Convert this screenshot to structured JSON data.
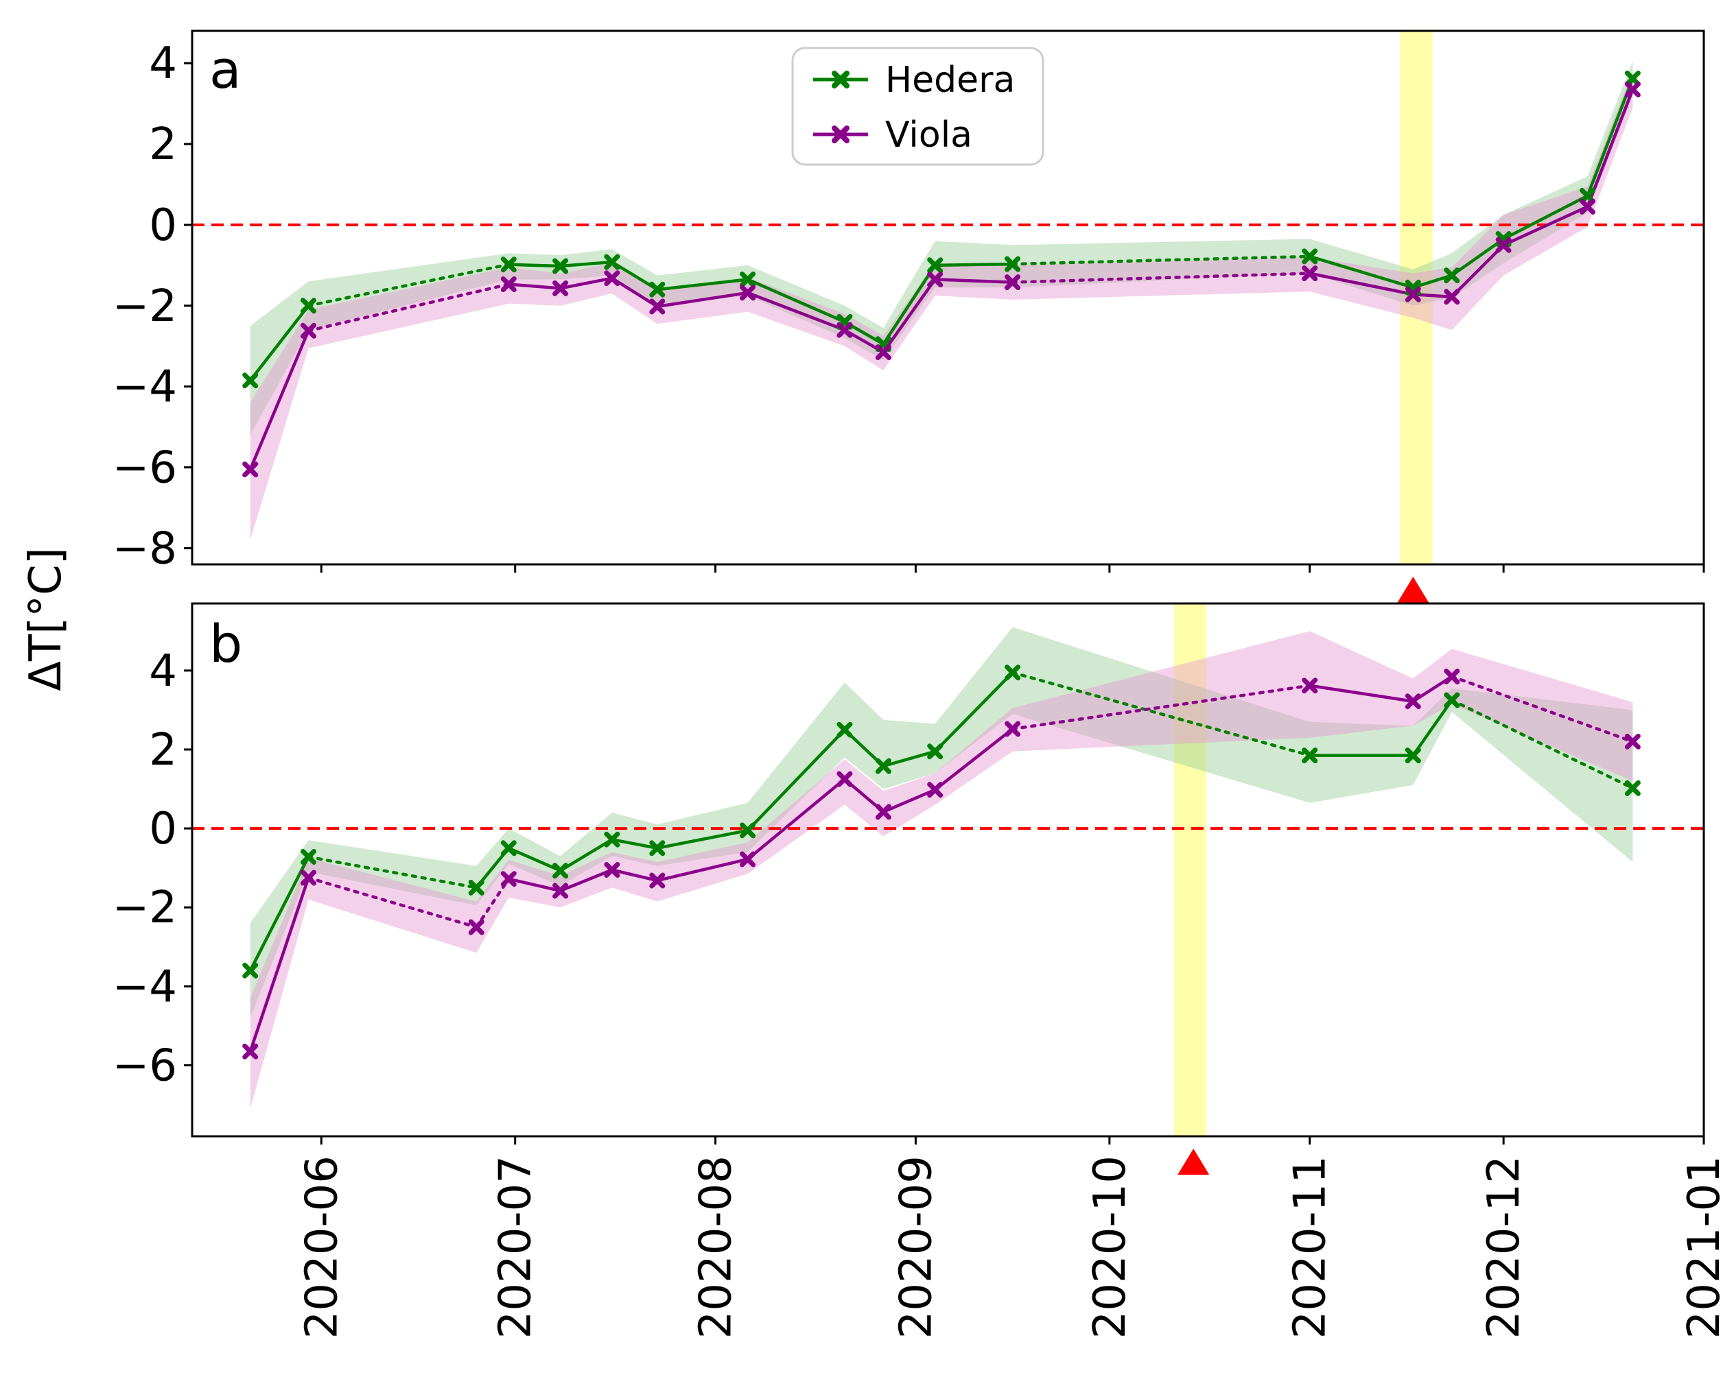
{
  "ylabel": "ΔT[°C]",
  "colors": {
    "hedera": "#008000",
    "viola": "#8b008b",
    "hedera_band": "#98cc98",
    "viola_band": "#e79ad0",
    "zero_line": "#ff0000",
    "highlight": "#ffffa0",
    "marker_triangle": "#ff0000"
  },
  "legend": {
    "placement": "top-center",
    "items": [
      "Hedera",
      "Viola"
    ]
  },
  "x_ticks": [
    "2020-06",
    "2020-07",
    "2020-08",
    "2020-09",
    "2020-10",
    "2020-11",
    "2020-12",
    "2021-01"
  ],
  "chart_data": [
    {
      "type": "line",
      "panel": "a",
      "xlabel": "",
      "ylabel": "ΔT[°C]",
      "xlim": [
        "2020-05-12",
        "2021-01-01"
      ],
      "ylim": [
        -8.4,
        4.8
      ],
      "yticks": [
        4,
        2,
        0,
        -2,
        -4,
        -6,
        -8
      ],
      "zero_line": 0,
      "highlight_span": [
        "2020-11-15",
        "2020-11-20"
      ],
      "event_marker": "2020-11-17",
      "series": [
        {
          "name": "Hedera",
          "dates": [
            "2020-05-21",
            "2020-05-30",
            "2020-06-30",
            "2020-07-08",
            "2020-07-16",
            "2020-07-23",
            "2020-08-06",
            "2020-08-21",
            "2020-08-27",
            "2020-09-04",
            "2020-09-16",
            "2020-11-01",
            "2020-11-17",
            "2020-11-23",
            "2020-12-01",
            "2020-12-14",
            "2020-12-21"
          ],
          "values": [
            -3.85,
            -2.0,
            -0.98,
            -1.02,
            -0.92,
            -1.6,
            -1.35,
            -2.4,
            -2.95,
            -1.0,
            -0.97,
            -0.78,
            -1.55,
            -1.25,
            -0.35,
            0.72,
            3.62
          ],
          "lower": [
            -5.2,
            -2.6,
            -1.35,
            -1.35,
            -1.25,
            -2.0,
            -1.75,
            -2.8,
            -3.35,
            -1.55,
            -1.55,
            -1.2,
            -2.0,
            -1.8,
            -0.95,
            0.3,
            3.2
          ],
          "upper": [
            -2.5,
            -1.4,
            -0.7,
            -0.75,
            -0.6,
            -1.25,
            -1.0,
            -2.0,
            -2.55,
            -0.4,
            -0.5,
            -0.35,
            -1.1,
            -0.7,
            0.25,
            1.2,
            4.05
          ],
          "segment_styles": [
            "solid",
            "dotted",
            "solid",
            "solid",
            "solid",
            "solid",
            "solid",
            "solid",
            "solid",
            "solid",
            "dotted",
            "solid",
            "solid",
            "solid",
            "solid",
            "solid"
          ]
        },
        {
          "name": "Viola",
          "dates": [
            "2020-05-21",
            "2020-05-30",
            "2020-06-30",
            "2020-07-08",
            "2020-07-16",
            "2020-07-23",
            "2020-08-06",
            "2020-08-21",
            "2020-08-27",
            "2020-09-04",
            "2020-09-16",
            "2020-11-01",
            "2020-11-17",
            "2020-11-23",
            "2020-12-01",
            "2020-12-14",
            "2020-12-21"
          ],
          "values": [
            -6.05,
            -2.62,
            -1.47,
            -1.57,
            -1.32,
            -2.02,
            -1.68,
            -2.6,
            -3.15,
            -1.35,
            -1.42,
            -1.2,
            -1.72,
            -1.78,
            -0.5,
            0.45,
            3.35
          ],
          "lower": [
            -7.8,
            -3.05,
            -1.95,
            -2.0,
            -1.7,
            -2.45,
            -2.15,
            -3.0,
            -3.6,
            -1.75,
            -1.85,
            -1.65,
            -2.3,
            -2.6,
            -1.25,
            -0.05,
            2.9
          ],
          "upper": [
            -4.4,
            -2.1,
            -1.05,
            -1.2,
            -0.95,
            -1.6,
            -1.3,
            -2.2,
            -2.75,
            -0.95,
            -1.0,
            -0.8,
            -1.2,
            -1.05,
            0.25,
            0.95,
            3.8
          ],
          "segment_styles": [
            "solid",
            "dotted",
            "solid",
            "solid",
            "solid",
            "solid",
            "solid",
            "solid",
            "solid",
            "solid",
            "dotted",
            "solid",
            "solid",
            "solid",
            "solid",
            "solid"
          ]
        }
      ]
    },
    {
      "type": "line",
      "panel": "b",
      "xlabel": "",
      "ylabel": "ΔT[°C]",
      "xlim": [
        "2020-05-12",
        "2021-01-01"
      ],
      "ylim": [
        -7.8,
        5.7
      ],
      "yticks": [
        4,
        2,
        0,
        -2,
        -4,
        -6
      ],
      "zero_line": 0,
      "highlight_span": [
        "2020-10-11",
        "2020-10-16"
      ],
      "event_marker": "2020-10-14",
      "series": [
        {
          "name": "Hedera",
          "dates": [
            "2020-05-21",
            "2020-05-30",
            "2020-06-25",
            "2020-06-30",
            "2020-07-08",
            "2020-07-16",
            "2020-07-23",
            "2020-08-06",
            "2020-08-21",
            "2020-08-27",
            "2020-09-04",
            "2020-09-16",
            "2020-11-01",
            "2020-11-17",
            "2020-11-23",
            "2020-12-21"
          ],
          "values": [
            -3.6,
            -0.72,
            -1.5,
            -0.5,
            -1.07,
            -0.28,
            -0.5,
            -0.05,
            2.5,
            1.58,
            1.95,
            3.95,
            1.85,
            1.85,
            3.25,
            1.02
          ],
          "lower": [
            -4.8,
            -1.1,
            -1.95,
            -0.9,
            -1.45,
            -0.7,
            -0.95,
            -0.6,
            1.8,
            1.0,
            1.4,
            2.9,
            0.65,
            1.1,
            2.95,
            -0.85
          ],
          "upper": [
            -2.4,
            -0.3,
            -0.95,
            0.0,
            -0.7,
            0.4,
            0.1,
            0.65,
            3.7,
            2.75,
            2.65,
            5.1,
            2.7,
            2.6,
            3.55,
            3.0
          ],
          "segment_styles": [
            "solid",
            "dotted",
            "solid",
            "solid",
            "solid",
            "solid",
            "solid",
            "solid",
            "solid",
            "solid",
            "solid",
            "dotted",
            "solid",
            "solid",
            "dotted"
          ]
        },
        {
          "name": "Viola",
          "dates": [
            "2020-05-21",
            "2020-05-30",
            "2020-06-25",
            "2020-06-30",
            "2020-07-08",
            "2020-07-16",
            "2020-07-23",
            "2020-08-06",
            "2020-08-21",
            "2020-08-27",
            "2020-09-04",
            "2020-09-16",
            "2020-11-01",
            "2020-11-17",
            "2020-11-23",
            "2020-12-21"
          ],
          "values": [
            -5.65,
            -1.25,
            -2.5,
            -1.28,
            -1.58,
            -1.05,
            -1.32,
            -0.78,
            1.25,
            0.42,
            0.98,
            2.52,
            3.62,
            3.22,
            3.85,
            2.2
          ],
          "lower": [
            -7.1,
            -1.8,
            -3.15,
            -1.75,
            -2.0,
            -1.5,
            -1.85,
            -1.15,
            0.6,
            -0.2,
            0.6,
            1.95,
            2.3,
            2.6,
            3.15,
            1.2
          ],
          "upper": [
            -4.3,
            -0.75,
            -1.85,
            -0.8,
            -1.2,
            -0.6,
            -0.85,
            -0.35,
            1.75,
            0.95,
            1.4,
            3.05,
            5.0,
            3.8,
            4.55,
            3.2
          ],
          "segment_styles": [
            "solid",
            "dotted",
            "dotted",
            "solid",
            "solid",
            "solid",
            "solid",
            "solid",
            "solid",
            "solid",
            "solid",
            "dotted",
            "solid",
            "solid",
            "dotted"
          ]
        }
      ]
    }
  ],
  "panels": [
    {
      "label": "a"
    },
    {
      "label": "b"
    }
  ]
}
